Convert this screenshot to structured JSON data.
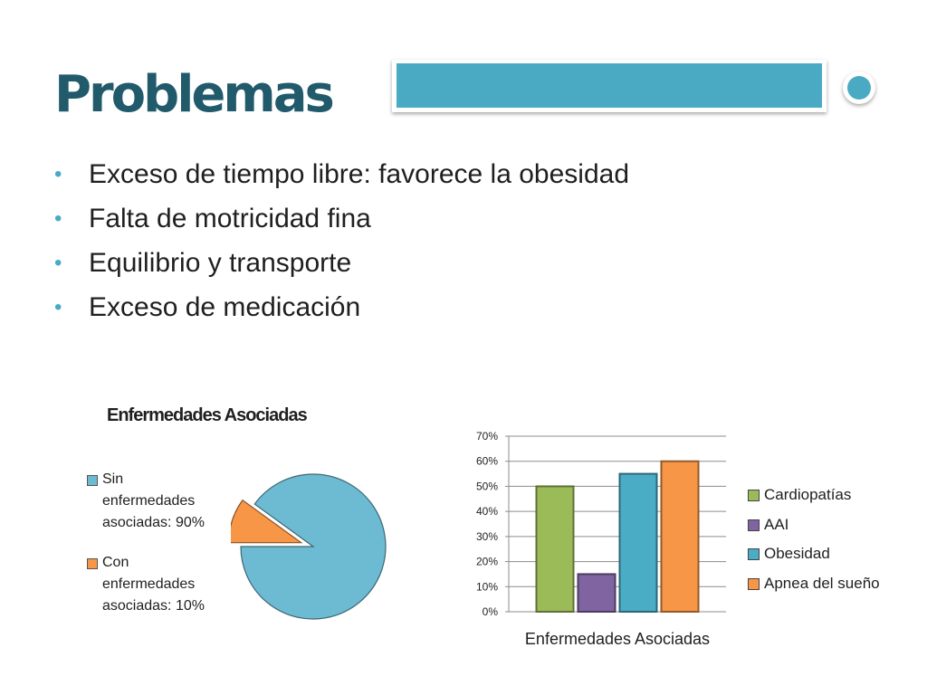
{
  "slide": {
    "title": "Problemas",
    "bullets": [
      "Exceso de tiempo libre: favorece la obesidad",
      "Falta de motricidad fina",
      "Equilibrio y transporte",
      "Exceso de medicación"
    ],
    "colors": {
      "title": "#215a6b",
      "accent": "#4aaac4",
      "bullet_dot": "#4aaac4"
    }
  },
  "chart_data": [
    {
      "type": "pie",
      "title": "Enfermedades Asociadas",
      "slices": [
        {
          "label": "Sin enfermedades asociadas: 90%",
          "label_lines": [
            "Sin",
            "enfermedades",
            "asociadas: 90%"
          ],
          "value": 90,
          "color": "#6dbbd2",
          "exploded": false
        },
        {
          "label": "Con enfermedades asociadas: 10%",
          "label_lines": [
            "Con",
            "enfermedades",
            "asociadas: 10%"
          ],
          "value": 10,
          "color": "#f79646",
          "exploded": true
        }
      ],
      "legend_position": "left"
    },
    {
      "type": "bar",
      "title": "",
      "xlabel": "Enfermedades Asociadas",
      "ylabel": "",
      "ylim": [
        0,
        70
      ],
      "yticks": [
        "0%",
        "10%",
        "20%",
        "30%",
        "40%",
        "50%",
        "60%",
        "70%"
      ],
      "grid": true,
      "legend_position": "right",
      "series": [
        {
          "name": "Cardiopatías",
          "values": [
            50
          ],
          "color": "#9bbb59"
        },
        {
          "name": "AAI",
          "values": [
            15
          ],
          "color": "#8064a2"
        },
        {
          "name": "Obesidad",
          "values": [
            55
          ],
          "color": "#4bacc6"
        },
        {
          "name": "Apnea del sueño",
          "values": [
            60
          ],
          "color": "#f79646"
        }
      ]
    }
  ]
}
